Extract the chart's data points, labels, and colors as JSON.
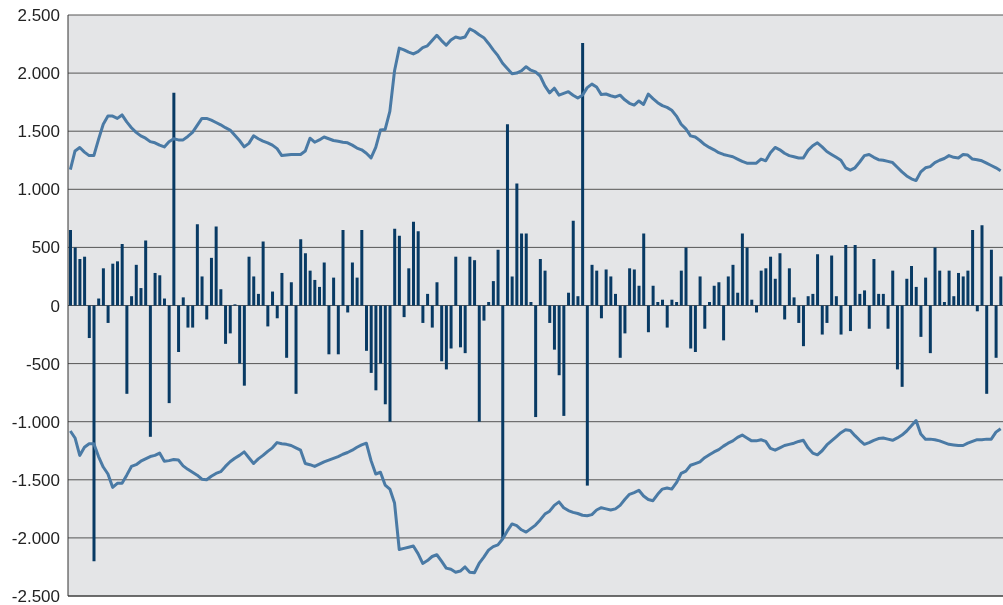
{
  "chart_data": {
    "type": "bar",
    "ylim": [
      -2500,
      2500
    ],
    "yticks": [
      {
        "value": -2500,
        "label": "-2.500"
      },
      {
        "value": -2000,
        "label": "-2.000"
      },
      {
        "value": -1500,
        "label": "-1.500"
      },
      {
        "value": -1000,
        "label": "-1.000"
      },
      {
        "value": -500,
        "label": "-500"
      },
      {
        "value": 0,
        "label": "0"
      },
      {
        "value": 500,
        "label": "500"
      },
      {
        "value": 1000,
        "label": "1.000"
      },
      {
        "value": 1500,
        "label": "1.500"
      },
      {
        "value": 2000,
        "label": "2.000"
      },
      {
        "value": 2500,
        "label": "2.500"
      }
    ],
    "grid": "y",
    "tick_labels": "y",
    "categories": [
      null,
      null,
      null,
      null,
      null,
      null,
      null,
      null,
      null,
      null,
      null,
      null,
      null,
      null,
      null,
      null,
      null,
      null,
      null,
      null,
      null,
      null,
      null,
      null,
      null,
      null,
      null,
      null,
      null,
      null,
      null,
      null,
      null,
      null,
      null,
      null,
      null,
      null,
      null,
      null,
      null,
      null,
      null,
      null,
      null,
      null,
      null,
      null,
      null,
      null,
      null,
      null,
      null,
      null,
      null,
      null,
      null,
      null,
      null,
      null,
      null,
      null,
      null,
      null,
      null,
      null,
      null,
      null,
      null,
      null,
      null,
      null,
      null,
      null,
      null,
      null,
      null,
      null,
      null,
      null,
      null,
      null,
      null,
      null,
      null,
      null,
      null,
      null,
      null,
      null,
      null,
      null,
      null,
      null,
      null,
      null,
      null,
      null,
      null,
      null,
      null,
      null,
      null,
      null,
      null,
      null,
      null,
      null,
      null,
      null,
      null,
      null,
      null,
      null,
      null,
      null,
      null,
      null,
      null,
      null,
      null,
      null,
      null,
      null,
      null,
      null,
      null,
      null,
      null,
      null,
      null,
      null,
      null,
      null,
      null,
      null,
      null,
      null,
      null,
      null,
      null,
      null,
      null,
      null,
      null,
      null,
      null,
      null,
      null,
      null,
      null,
      null,
      null,
      null,
      null,
      null,
      null,
      null,
      null,
      null,
      null,
      null,
      null,
      null,
      null,
      null,
      null,
      null,
      null,
      null,
      null,
      null,
      null,
      null,
      null,
      null,
      null,
      null,
      null,
      null,
      null,
      null,
      null,
      null,
      null,
      null,
      null,
      null,
      null,
      null,
      null,
      null,
      null,
      null,
      null,
      null,
      null,
      null,
      null
    ],
    "series": [
      {
        "color": "#083a64",
        "values": [
          650,
          500,
          400,
          420,
          -280,
          -2200,
          60,
          320,
          -150,
          360,
          380,
          530,
          -760,
          80,
          350,
          150,
          560,
          -1130,
          280,
          260,
          60,
          -840,
          1830,
          -400,
          70,
          -190,
          -190,
          700,
          250,
          -120,
          410,
          680,
          140,
          -330,
          -240,
          10,
          -500,
          -690,
          420,
          250,
          100,
          550,
          -180,
          120,
          -110,
          280,
          -450,
          200,
          -760,
          570,
          450,
          300,
          220,
          160,
          370,
          -420,
          240,
          -420,
          650,
          -60,
          370,
          240,
          650,
          -390,
          -580,
          -730,
          -500,
          -850,
          -1000,
          660,
          600,
          -100,
          320,
          720,
          640,
          -150,
          100,
          -190,
          200,
          -480,
          -550,
          -370,
          420,
          -360,
          -410,
          420,
          390,
          -1000,
          -130,
          30,
          210,
          480,
          -2000,
          1560,
          250,
          1050,
          620,
          620,
          30,
          -960,
          400,
          300,
          -150,
          -380,
          -600,
          -950,
          110,
          730,
          80,
          2260,
          -1550,
          350,
          300,
          -110,
          310,
          250,
          100,
          -450,
          -240,
          320,
          310,
          170,
          620,
          -230,
          170,
          30,
          50,
          -190,
          50,
          30,
          300,
          500,
          -370,
          -400,
          250,
          -200,
          30,
          170,
          200,
          -300,
          250,
          350,
          110,
          620,
          500,
          50,
          -60,
          300,
          320,
          420,
          230,
          450,
          -120,
          320,
          70,
          -150,
          -350,
          80,
          100,
          440,
          -250,
          -150,
          430,
          80,
          -250,
          520,
          -220,
          520,
          100,
          130,
          -200,
          400,
          100,
          100,
          -200,
          300,
          -550,
          -700,
          230,
          340,
          160,
          -270,
          240,
          -410,
          500,
          300,
          30,
          300,
          80,
          280,
          250,
          300,
          650,
          -50,
          690,
          -760,
          480,
          -450,
          250
        ]
      },
      {
        "type": "line",
        "color": "#4a7aa5",
        "values": [
          1170,
          1330,
          1360,
          1320,
          1290,
          1290,
          1430,
          1560,
          1630,
          1630,
          1610,
          1640,
          1580,
          1530,
          1490,
          1460,
          1440,
          1410,
          1400,
          1380,
          1365,
          1410,
          1435,
          1425,
          1425,
          1455,
          1490,
          1550,
          1610,
          1610,
          1595,
          1575,
          1555,
          1530,
          1510,
          1465,
          1420,
          1365,
          1395,
          1460,
          1435,
          1415,
          1400,
          1380,
          1350,
          1290,
          1295,
          1300,
          1300,
          1300,
          1330,
          1440,
          1405,
          1425,
          1450,
          1435,
          1420,
          1413,
          1405,
          1400,
          1380,
          1355,
          1340,
          1310,
          1270,
          1360,
          1510,
          1515,
          1670,
          2020,
          2215,
          2200,
          2180,
          2165,
          2185,
          2220,
          2235,
          2280,
          2325,
          2280,
          2240,
          2285,
          2310,
          2300,
          2310,
          2380,
          2360,
          2330,
          2305,
          2255,
          2200,
          2150,
          2085,
          2040,
          1995,
          2000,
          2020,
          2055,
          2025,
          2010,
          1975,
          1890,
          1830,
          1870,
          1810,
          1825,
          1840,
          1810,
          1785,
          1810,
          1875,
          1905,
          1880,
          1815,
          1820,
          1805,
          1795,
          1810,
          1770,
          1740,
          1725,
          1760,
          1730,
          1820,
          1780,
          1745,
          1720,
          1705,
          1680,
          1630,
          1560,
          1520,
          1460,
          1450,
          1420,
          1385,
          1360,
          1340,
          1315,
          1300,
          1290,
          1280,
          1260,
          1240,
          1225,
          1225,
          1225,
          1260,
          1245,
          1315,
          1360,
          1340,
          1310,
          1290,
          1280,
          1270,
          1270,
          1335,
          1375,
          1400,
          1365,
          1325,
          1300,
          1275,
          1250,
          1185,
          1165,
          1185,
          1235,
          1290,
          1300,
          1275,
          1255,
          1250,
          1240,
          1230,
          1190,
          1150,
          1115,
          1090,
          1075,
          1150,
          1185,
          1195,
          1230,
          1250,
          1265,
          1290,
          1275,
          1270,
          1300,
          1295,
          1260,
          1255,
          1245,
          1225,
          1205,
          1185,
          1160
        ]
      },
      {
        "type": "line",
        "color": "#4a7aa5",
        "values": [
          -1080,
          -1140,
          -1290,
          -1220,
          -1190,
          -1190,
          -1300,
          -1390,
          -1450,
          -1565,
          -1530,
          -1530,
          -1460,
          -1385,
          -1370,
          -1340,
          -1320,
          -1300,
          -1290,
          -1270,
          -1340,
          -1335,
          -1325,
          -1330,
          -1380,
          -1410,
          -1435,
          -1460,
          -1495,
          -1500,
          -1470,
          -1445,
          -1430,
          -1385,
          -1345,
          -1315,
          -1290,
          -1260,
          -1310,
          -1360,
          -1320,
          -1290,
          -1255,
          -1225,
          -1180,
          -1190,
          -1195,
          -1205,
          -1225,
          -1245,
          -1360,
          -1370,
          -1385,
          -1365,
          -1345,
          -1330,
          -1315,
          -1300,
          -1280,
          -1265,
          -1245,
          -1220,
          -1200,
          -1185,
          -1335,
          -1450,
          -1435,
          -1545,
          -1580,
          -1700,
          -2100,
          -2090,
          -2080,
          -2070,
          -2135,
          -2220,
          -2195,
          -2160,
          -2145,
          -2200,
          -2260,
          -2270,
          -2295,
          -2285,
          -2250,
          -2295,
          -2300,
          -2220,
          -2165,
          -2105,
          -2075,
          -2060,
          -2010,
          -1940,
          -1880,
          -1895,
          -1930,
          -1950,
          -1920,
          -1890,
          -1845,
          -1795,
          -1770,
          -1720,
          -1690,
          -1740,
          -1765,
          -1780,
          -1790,
          -1805,
          -1810,
          -1800,
          -1760,
          -1740,
          -1750,
          -1760,
          -1750,
          -1720,
          -1670,
          -1625,
          -1610,
          -1590,
          -1640,
          -1670,
          -1680,
          -1625,
          -1580,
          -1570,
          -1580,
          -1525,
          -1445,
          -1425,
          -1375,
          -1360,
          -1345,
          -1310,
          -1285,
          -1260,
          -1240,
          -1210,
          -1185,
          -1165,
          -1135,
          -1115,
          -1140,
          -1165,
          -1165,
          -1155,
          -1170,
          -1230,
          -1245,
          -1225,
          -1205,
          -1195,
          -1185,
          -1170,
          -1160,
          -1225,
          -1270,
          -1285,
          -1250,
          -1200,
          -1165,
          -1130,
          -1095,
          -1070,
          -1075,
          -1120,
          -1160,
          -1195,
          -1180,
          -1160,
          -1145,
          -1140,
          -1150,
          -1160,
          -1140,
          -1115,
          -1080,
          -1035,
          -990,
          -1105,
          -1150,
          -1150,
          -1155,
          -1165,
          -1180,
          -1195,
          -1200,
          -1205,
          -1205,
          -1185,
          -1170,
          -1155,
          -1155,
          -1150,
          -1150,
          -1090,
          -1060
        ]
      }
    ]
  }
}
